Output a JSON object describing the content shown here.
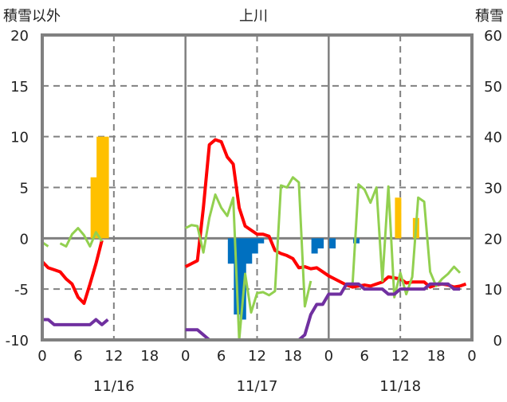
{
  "chart_data": {
    "type": "line",
    "title": "上川",
    "ylabel_left": "積雪以外",
    "ylabel_right": "積雪",
    "ylim_left": [
      -10,
      20
    ],
    "ylim_right": [
      0,
      60
    ],
    "yticks_left": [
      "20",
      "15",
      "10",
      "5",
      "0",
      "-5",
      "-10"
    ],
    "yticks_right": [
      "60",
      "50",
      "40",
      "30",
      "20",
      "10",
      "0"
    ],
    "xlim_hours": [
      0,
      72
    ],
    "xtick_labels": [
      "0",
      "6",
      "12",
      "18",
      "0",
      "6",
      "12",
      "18",
      "0",
      "6",
      "12",
      "18",
      "0"
    ],
    "date_labels": [
      "11/16",
      "11/17",
      "11/18"
    ],
    "grid": true,
    "series": [
      {
        "name": "red-line",
        "color": "#ff0000",
        "axis": "left",
        "values": [
          -2.3,
          -2.9,
          -3.1,
          -3.3,
          -4,
          -4.5,
          -5.8,
          -6.4,
          -4.5,
          -2.5,
          -0.2,
          null,
          null,
          null,
          null,
          null,
          null,
          null,
          null,
          null,
          null,
          null,
          null,
          null,
          -2.8,
          -2.5,
          -2.2,
          3,
          9.2,
          9.7,
          9.5,
          8,
          7.3,
          3,
          1.2,
          0.8,
          0.4,
          0.4,
          0.2,
          -1.2,
          -1.5,
          -1.7,
          -2,
          -2.9,
          -2.8,
          -3,
          -2.9,
          -3.3,
          -3.7,
          -4,
          -4.3,
          -4.6,
          -4.8,
          -4.7,
          -4.6,
          -4.7,
          -4.5,
          -4.3,
          -3.8,
          -3.9,
          -4,
          -4.4,
          -4.3,
          -4.3,
          -4.3,
          -4.8,
          -4.6,
          -4.5,
          -4.6,
          -4.8,
          -4.7,
          -4.5
        ]
      },
      {
        "name": "green-line",
        "color": "#92d050",
        "axis": "left",
        "values": [
          -0.4,
          -0.8,
          null,
          -0.5,
          -0.8,
          0.4,
          1,
          0.3,
          -0.8,
          0.6,
          -0.3,
          null,
          null,
          null,
          null,
          null,
          null,
          null,
          null,
          null,
          null,
          null,
          null,
          null,
          1,
          1.3,
          1.2,
          -1.4,
          2,
          4.3,
          3,
          2.2,
          4,
          -10,
          -3.5,
          -7.3,
          -5.4,
          -5.3,
          -5.6,
          -5.2,
          5.2,
          5,
          6,
          5.5,
          -6.7,
          -4.2,
          null,
          null,
          null,
          null,
          null,
          null,
          -4.5,
          5.3,
          4.8,
          3.5,
          5,
          -4.2,
          5.1,
          -5.8,
          -3.4,
          -5.5,
          -3.8,
          4,
          3.6,
          -3.3,
          -4.7,
          -4,
          -3.5,
          -2.8,
          -3.4
        ]
      },
      {
        "name": "purple-line",
        "color": "#7030a0",
        "axis": "right",
        "values": [
          4,
          4,
          3,
          3,
          3,
          3,
          3,
          3,
          3,
          4,
          3,
          4,
          null,
          null,
          null,
          null,
          null,
          null,
          null,
          null,
          null,
          null,
          null,
          null,
          2,
          2,
          2,
          1,
          0,
          0,
          0,
          0,
          0,
          0,
          0,
          0,
          0,
          0,
          0,
          0,
          0,
          0,
          0,
          0,
          1,
          5,
          7,
          7,
          9,
          9,
          9,
          11,
          11,
          11,
          10,
          10,
          10,
          10,
          9,
          9,
          10,
          10,
          10,
          10,
          10,
          11,
          11,
          11,
          11,
          10,
          10
        ]
      }
    ],
    "bars": [
      {
        "name": "orange-bars",
        "color": "#ffc000",
        "axis": "left",
        "hours": [
          8,
          9,
          10,
          59,
          62
        ],
        "values": [
          6,
          10,
          10,
          4,
          2
        ]
      },
      {
        "name": "blue-bars",
        "color": "#0070c0",
        "axis": "left",
        "hours": [
          31,
          32,
          33,
          34,
          35,
          36,
          45,
          46,
          48,
          52
        ],
        "values": [
          -2.5,
          -7.5,
          -8,
          -2.5,
          -1.5,
          -0.5,
          -1.5,
          -1,
          -1,
          -0.5
        ]
      }
    ]
  }
}
